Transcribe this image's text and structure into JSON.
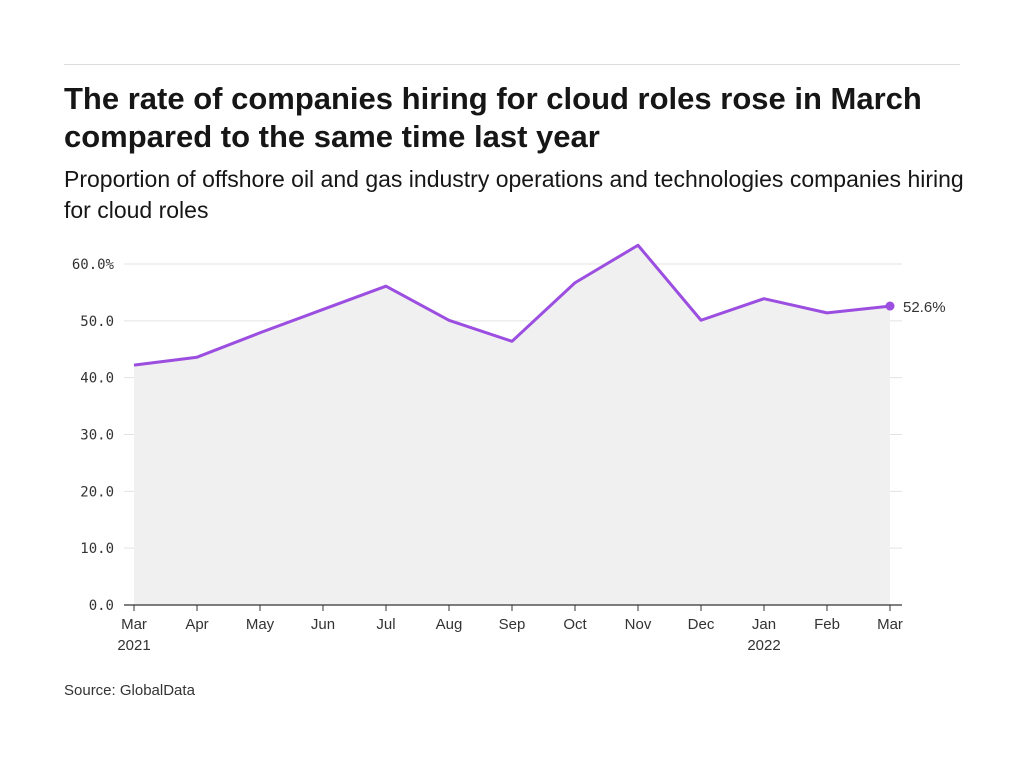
{
  "title": "The rate of companies hiring for cloud roles rose in March compared to the same time last year",
  "subtitle": "Proportion of offshore oil and gas industry operations and technologies companies hiring for cloud roles",
  "source": "Source: GlobalData",
  "colors": {
    "line": "#9b4ee0",
    "area": "#f0f0f0",
    "grid": "#e3e3e3",
    "axis": "#333333"
  },
  "chart_data": {
    "type": "area",
    "categories": [
      "Mar 2021",
      "Apr 2021",
      "May 2021",
      "Jun 2021",
      "Jul 2021",
      "Aug 2021",
      "Sep 2021",
      "Oct 2021",
      "Nov 2021",
      "Dec 2021",
      "Jan 2022",
      "Feb 2022",
      "Mar 2022"
    ],
    "x_tick_labels": [
      [
        "Mar",
        "2021"
      ],
      [
        "Apr"
      ],
      [
        "May"
      ],
      [
        "Jun"
      ],
      [
        "Jul"
      ],
      [
        "Aug"
      ],
      [
        "Sep"
      ],
      [
        "Oct"
      ],
      [
        "Nov"
      ],
      [
        "Dec"
      ],
      [
        "Jan",
        "2022"
      ],
      [
        "Feb"
      ],
      [
        "Mar"
      ]
    ],
    "series": [
      {
        "values": [
          42.2,
          43.6,
          47.9,
          52.0,
          56.1,
          50.1,
          46.4,
          56.7,
          63.3,
          50.1,
          53.9,
          51.4,
          52.6
        ]
      }
    ],
    "y_ticks": [
      0,
      10,
      20,
      30,
      40,
      50,
      60
    ],
    "y_tick_labels": [
      "0.0",
      "10.0",
      "20.0",
      "30.0",
      "40.0",
      "50.0",
      "60.0%"
    ],
    "ylim": [
      0,
      60
    ],
    "end_label": "52.6%",
    "grid": true
  }
}
